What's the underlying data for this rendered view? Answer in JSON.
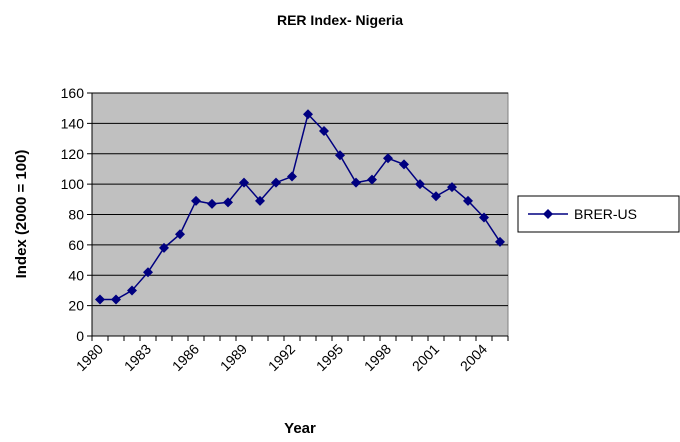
{
  "chart_data": {
    "type": "line",
    "title": "RER Index- Nigeria",
    "x_label": "Year",
    "y_label": "Index (2000 = 100)",
    "categories": [
      "1980",
      null,
      null,
      "1983",
      null,
      null,
      "1986",
      null,
      null,
      "1989",
      null,
      null,
      "1992",
      null,
      null,
      "1995",
      null,
      null,
      "1998",
      null,
      null,
      "2001",
      null,
      null,
      "2004",
      null
    ],
    "series": [
      {
        "name": "BRER-US",
        "color": "#000080",
        "values": [
          24,
          24,
          30,
          42,
          58,
          67,
          89,
          87,
          88,
          101,
          89,
          101,
          105,
          146,
          135,
          119,
          101,
          103,
          117,
          113,
          100,
          92,
          98,
          89,
          78,
          62
        ]
      }
    ],
    "ylim": [
      0,
      160
    ],
    "yticks": [
      0,
      20,
      40,
      60,
      80,
      100,
      120,
      140,
      160
    ],
    "grid": true,
    "legend": "right"
  }
}
